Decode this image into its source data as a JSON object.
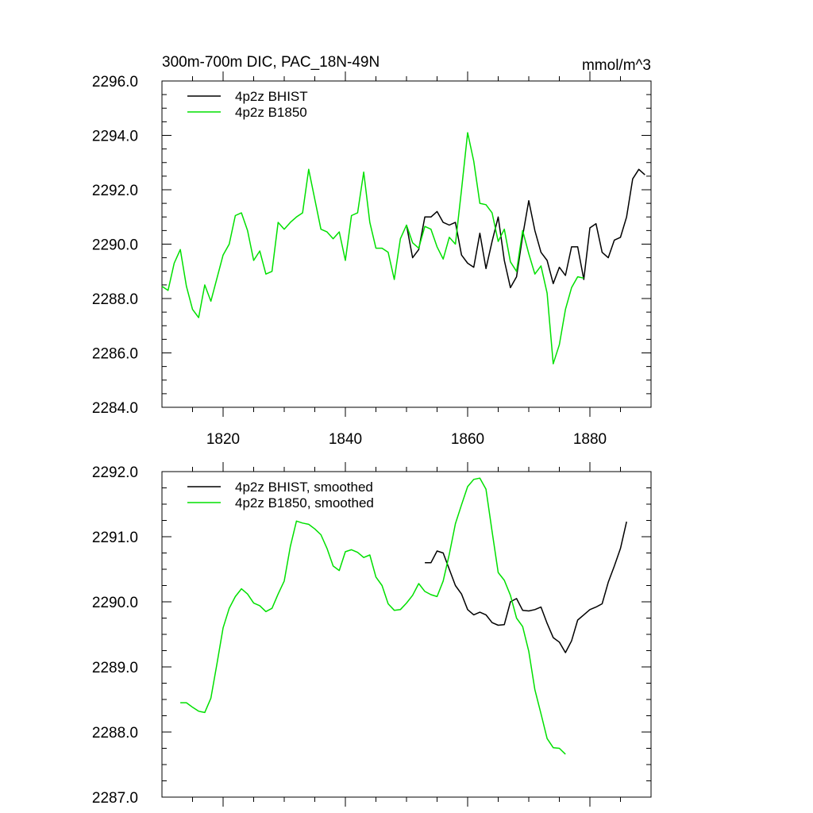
{
  "chart_data": [
    {
      "type": "line",
      "title": "300m-700m DIC, PAC_18N-49N",
      "units": "mmol/m^3",
      "xlim": [
        1810,
        1890
      ],
      "ylim": [
        2284.0,
        2296.0
      ],
      "x_ticks": [
        1820,
        1840,
        1860,
        1880
      ],
      "x_tick_labels": [
        "1820",
        "1840",
        "1860",
        "1880"
      ],
      "y_ticks": [
        2284.0,
        2286.0,
        2288.0,
        2290.0,
        2292.0,
        2294.0,
        2296.0
      ],
      "y_tick_labels": [
        "2284.0",
        "2286.0",
        "2288.0",
        "2290.0",
        "2292.0",
        "2294.0",
        "2296.0"
      ],
      "legend_position": "top-left",
      "series": [
        {
          "name": "4p2z BHIST",
          "color": "#000000",
          "x": [
            1850,
            1851,
            1852,
            1853,
            1854,
            1855,
            1856,
            1857,
            1858,
            1859,
            1860,
            1861,
            1862,
            1863,
            1864,
            1865,
            1866,
            1867,
            1868,
            1869,
            1870,
            1871,
            1872,
            1873,
            1874,
            1875,
            1876,
            1877,
            1878,
            1879,
            1880,
            1881,
            1882,
            1883,
            1884,
            1885,
            1886,
            1887,
            1888,
            1889
          ],
          "values": [
            2290.7,
            2289.5,
            2289.8,
            2291.0,
            2291.0,
            2291.2,
            2290.8,
            2290.7,
            2290.8,
            2289.6,
            2289.3,
            2289.15,
            2290.4,
            2289.1,
            2290.1,
            2291.0,
            2289.4,
            2288.4,
            2288.8,
            2290.3,
            2291.6,
            2290.5,
            2289.7,
            2289.4,
            2288.55,
            2289.15,
            2288.85,
            2289.9,
            2289.9,
            2288.7,
            2290.6,
            2290.75,
            2289.7,
            2289.5,
            2290.15,
            2290.25,
            2291.0,
            2292.4,
            2292.75,
            2292.55
          ]
        },
        {
          "name": "4p2z B1850",
          "color": "#00e000",
          "x": [
            1810,
            1811,
            1812,
            1813,
            1814,
            1815,
            1816,
            1817,
            1818,
            1819,
            1820,
            1821,
            1822,
            1823,
            1824,
            1825,
            1826,
            1827,
            1828,
            1829,
            1830,
            1831,
            1832,
            1833,
            1834,
            1835,
            1836,
            1837,
            1838,
            1839,
            1840,
            1841,
            1842,
            1843,
            1844,
            1845,
            1846,
            1847,
            1848,
            1849,
            1850,
            1851,
            1852,
            1853,
            1854,
            1855,
            1856,
            1857,
            1858,
            1859,
            1860,
            1861,
            1862,
            1863,
            1864,
            1865,
            1866,
            1867,
            1868,
            1869,
            1870,
            1871,
            1872,
            1873,
            1874,
            1875,
            1876,
            1877,
            1878,
            1879
          ],
          "values": [
            2288.45,
            2288.3,
            2289.3,
            2289.8,
            2288.45,
            2287.6,
            2287.3,
            2288.5,
            2287.9,
            2288.75,
            2289.6,
            2290.0,
            2291.05,
            2291.15,
            2290.5,
            2289.4,
            2289.75,
            2288.9,
            2289.0,
            2290.8,
            2290.55,
            2290.8,
            2291.0,
            2291.15,
            2292.75,
            2291.65,
            2290.55,
            2290.45,
            2290.2,
            2290.45,
            2289.4,
            2291.05,
            2291.15,
            2292.65,
            2290.8,
            2289.85,
            2289.85,
            2289.7,
            2288.7,
            2290.2,
            2290.7,
            2290.05,
            2289.85,
            2290.65,
            2290.55,
            2289.9,
            2289.45,
            2290.25,
            2290.0,
            2292.0,
            2294.1,
            2293.05,
            2291.5,
            2291.45,
            2291.15,
            2290.1,
            2290.55,
            2289.35,
            2289.0,
            2290.5,
            2289.65,
            2288.9,
            2289.2,
            2288.2,
            2285.6,
            2286.3,
            2287.6,
            2288.4,
            2288.8,
            2288.75
          ]
        }
      ]
    },
    {
      "type": "line",
      "title": "",
      "xlim": [
        1810,
        1890
      ],
      "ylim": [
        2287.0,
        2292.0
      ],
      "x_ticks": [
        1820,
        1840,
        1860,
        1880
      ],
      "y_ticks": [
        2287.0,
        2288.0,
        2289.0,
        2290.0,
        2291.0,
        2292.0
      ],
      "y_tick_labels": [
        "2287.0",
        "2288.0",
        "2289.0",
        "2290.0",
        "2291.0",
        "2292.0"
      ],
      "legend_position": "top-left",
      "series": [
        {
          "name": "4p2z BHIST, smoothed",
          "color": "#000000",
          "x": [
            1853,
            1854,
            1855,
            1856,
            1857,
            1858,
            1859,
            1860,
            1861,
            1862,
            1863,
            1864,
            1865,
            1866,
            1867,
            1868,
            1869,
            1870,
            1871,
            1872,
            1873,
            1874,
            1875,
            1876,
            1877,
            1878,
            1879,
            1880,
            1881,
            1882,
            1883,
            1884,
            1885,
            1886
          ],
          "values": [
            2290.6,
            2290.6,
            2290.78,
            2290.75,
            2290.5,
            2290.25,
            2290.12,
            2289.88,
            2289.8,
            2289.84,
            2289.8,
            2289.68,
            2289.64,
            2289.65,
            2290.0,
            2290.05,
            2289.87,
            2289.86,
            2289.88,
            2289.92,
            2289.67,
            2289.45,
            2289.38,
            2289.22,
            2289.4,
            2289.72,
            2289.8,
            2289.88,
            2289.92,
            2289.97,
            2290.3,
            2290.55,
            2290.82,
            2291.23
          ]
        },
        {
          "name": "4p2z B1850, smoothed",
          "color": "#00e000",
          "x": [
            1813,
            1814,
            1815,
            1816,
            1817,
            1818,
            1819,
            1820,
            1821,
            1822,
            1823,
            1824,
            1825,
            1826,
            1827,
            1828,
            1829,
            1830,
            1831,
            1832,
            1833,
            1834,
            1835,
            1836,
            1837,
            1838,
            1839,
            1840,
            1841,
            1842,
            1843,
            1844,
            1845,
            1846,
            1847,
            1848,
            1849,
            1850,
            1851,
            1852,
            1853,
            1854,
            1855,
            1856,
            1857,
            1858,
            1859,
            1860,
            1861,
            1862,
            1863,
            1864,
            1865,
            1866,
            1867,
            1868,
            1869,
            1870,
            1871,
            1872,
            1873,
            1874,
            1875,
            1876
          ],
          "values": [
            2288.45,
            2288.45,
            2288.38,
            2288.32,
            2288.3,
            2288.52,
            2289.05,
            2289.6,
            2289.9,
            2290.08,
            2290.2,
            2290.12,
            2289.98,
            2289.94,
            2289.85,
            2289.9,
            2290.12,
            2290.32,
            2290.85,
            2291.24,
            2291.21,
            2291.19,
            2291.12,
            2291.03,
            2290.82,
            2290.55,
            2290.48,
            2290.77,
            2290.8,
            2290.76,
            2290.68,
            2290.72,
            2290.38,
            2290.25,
            2289.97,
            2289.87,
            2289.88,
            2289.98,
            2290.1,
            2290.28,
            2290.16,
            2290.11,
            2290.08,
            2290.32,
            2290.73,
            2291.2,
            2291.49,
            2291.77,
            2291.88,
            2291.9,
            2291.73,
            2291.08,
            2290.45,
            2290.33,
            2290.1,
            2289.75,
            2289.62,
            2289.24,
            2288.65,
            2288.28,
            2287.9,
            2287.76,
            2287.75,
            2287.66
          ]
        }
      ]
    }
  ]
}
